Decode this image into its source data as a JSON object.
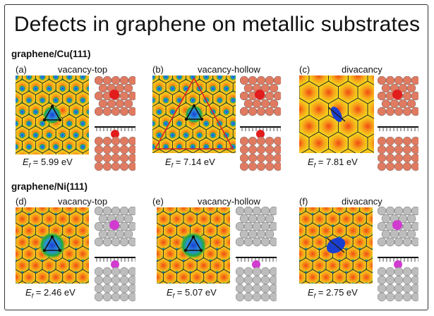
{
  "title": "Defects in graphene on metallic substrates",
  "sections": [
    {
      "label": "graphene/Cu(111)"
    },
    {
      "label": "graphene/Ni(111)"
    }
  ],
  "panels": [
    {
      "letter": "(a)",
      "title": "vacancy-top",
      "energy_symbol": "E",
      "energy_sub": "f",
      "energy_value": " = 5.99 eV",
      "substrate": "Cu",
      "defect": "vacancy-top"
    },
    {
      "letter": "(b)",
      "title": "vacancy-hollow",
      "energy_symbol": "E",
      "energy_sub": "f",
      "energy_value": " = 7.14 eV",
      "substrate": "Cu",
      "defect": "vacancy-hollow"
    },
    {
      "letter": "(c)",
      "title": "divacancy",
      "energy_symbol": "E",
      "energy_sub": "f",
      "energy_value": " = 7.81 eV",
      "substrate": "Cu",
      "defect": "divacancy"
    },
    {
      "letter": "(d)",
      "title": "vacancy-top",
      "energy_symbol": "E",
      "energy_sub": "f",
      "energy_value": " = 2.46 eV",
      "substrate": "Ni",
      "defect": "vacancy-top"
    },
    {
      "letter": "(e)",
      "title": "vacancy-hollow",
      "energy_symbol": "E",
      "energy_sub": "f",
      "energy_value": " = 5.07 eV",
      "substrate": "Ni",
      "defect": "vacancy-hollow"
    },
    {
      "letter": "(f)",
      "title": "divacancy",
      "energy_symbol": "E",
      "energy_sub": "f",
      "energy_value": " = 2.75 eV",
      "substrate": "Ni",
      "defect": "divacancy"
    }
  ],
  "colors": {
    "map_base": "#f4d21c",
    "map_green": "#1faa3a",
    "map_blue": "#1a3fd0",
    "map_red": "#f04a12",
    "cu_atom": "#e07a60",
    "ni_atom": "#bdbdbd",
    "defect_atom_cu": "#e21d1d",
    "defect_atom_ni": "#d13bd0",
    "lattice": "#2a2a2a"
  }
}
